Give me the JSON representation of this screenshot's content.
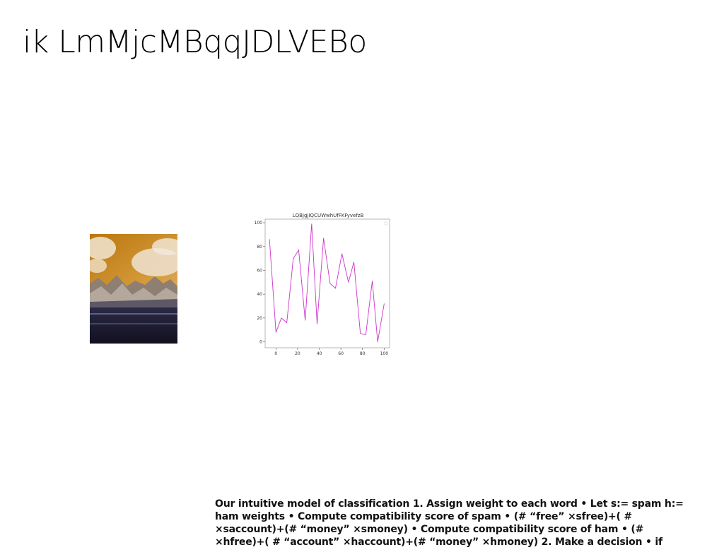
{
  "slide": {
    "title": "ik LmMjcMBqqJDLVEBo",
    "body": "Our intuitive model of classification 1. Assign weight to each word • Let s:= spam h:= ham weights • Compute compatibility score of spam • (# “free” ×sfree)+( # ×saccount)+(# “money” ×smoney) • Compute compatibility score of ham • (# ×hfree)+( # “account” ×haccount)+(# “money” ×hmoney) 2. Make a decision • if"
  },
  "colors": {
    "line": "#cc33cc",
    "sky": "#c8891c",
    "mountain": "#8a7a70",
    "ground": "#1c1a30"
  },
  "chart_data": {
    "type": "line",
    "title": "LQBJgJIQCUWwhUfFKFyvefzB",
    "xlabel": "",
    "ylabel": "",
    "xlim": [
      -10,
      105
    ],
    "ylim": [
      -5,
      103
    ],
    "xticks": [
      0,
      20,
      40,
      60,
      80,
      100
    ],
    "yticks": [
      0,
      20,
      40,
      60,
      80,
      100
    ],
    "grid": false,
    "series": [
      {
        "x": [
          -6,
          0,
          5,
          10,
          16,
          21,
          27,
          33,
          38,
          44,
          50,
          55,
          61,
          67,
          72,
          78,
          83,
          89,
          94,
          100
        ],
        "y": [
          86,
          8,
          20,
          16,
          70,
          77,
          18,
          99,
          15,
          87,
          49,
          45,
          74,
          50,
          67,
          7,
          6,
          51,
          0,
          32
        ]
      }
    ]
  }
}
